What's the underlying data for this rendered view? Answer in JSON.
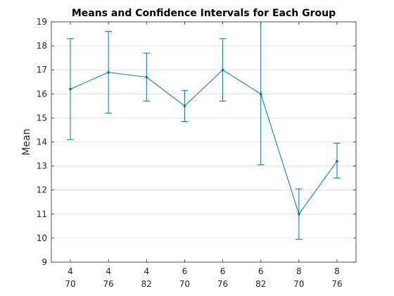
{
  "chart_data": {
    "type": "line",
    "title": "Means and Confidence Intervals for Each Group",
    "xlabel": "",
    "ylabel": "Mean",
    "ylim": [
      9,
      19
    ],
    "yticks": [
      9,
      10,
      11,
      12,
      13,
      14,
      15,
      16,
      17,
      18,
      19
    ],
    "grid": "horizontal",
    "categories": [
      {
        "line1": "4",
        "line2": "70"
      },
      {
        "line1": "4",
        "line2": "76"
      },
      {
        "line1": "4",
        "line2": "82"
      },
      {
        "line1": "6",
        "line2": "70"
      },
      {
        "line1": "6",
        "line2": "76"
      },
      {
        "line1": "6",
        "line2": "82"
      },
      {
        "line1": "8",
        "line2": "70"
      },
      {
        "line1": "8",
        "line2": "76"
      }
    ],
    "series": [
      {
        "values": [
          16.2,
          16.9,
          16.7,
          15.5,
          17.0,
          16.0,
          11.0,
          13.2
        ],
        "lower": [
          14.1,
          15.2,
          15.7,
          14.85,
          15.7,
          13.05,
          9.95,
          12.5
        ],
        "upper": [
          18.3,
          18.6,
          17.7,
          16.15,
          18.3,
          19.0,
          12.05,
          13.95
        ],
        "color": "#0072BD"
      }
    ]
  }
}
